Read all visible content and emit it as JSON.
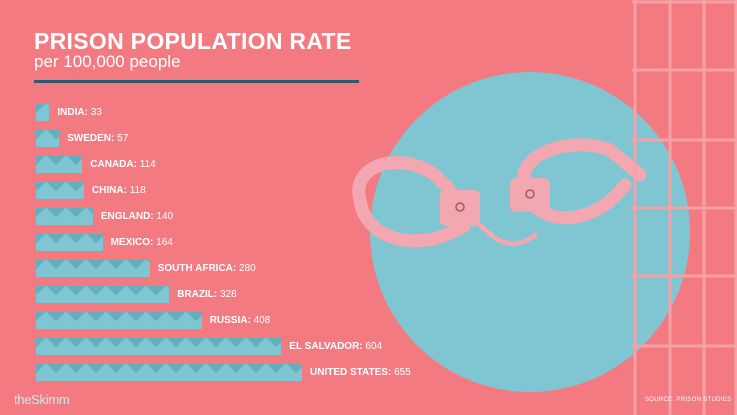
{
  "header": {
    "title": "PRISON POPULATION RATE",
    "subtitle": "per 100,000 people"
  },
  "footer": {
    "logo": "theSkimm",
    "source": "SOURCE: PRISON STUDIES"
  },
  "colors": {
    "background": "#f27a80",
    "bar": "#7fc6d2",
    "bar_pattern": "#4f9bac",
    "divider": "#2e5a6b",
    "circle": "#7fc6d2"
  },
  "decorations": {
    "handcuffs": "handcuffs-illustration",
    "prison_bars": "prison-bars-illustration"
  },
  "chart_data": {
    "type": "bar",
    "orientation": "horizontal",
    "title": "PRISON POPULATION RATE",
    "subtitle": "per 100,000 people",
    "categories": [
      "INDIA",
      "SWEDEN",
      "CANADA",
      "CHINA",
      "ENGLAND",
      "MEXICO",
      "SOUTH AFRICA",
      "BRAZIL",
      "RUSSIA",
      "EL SALVADOR",
      "UNITED STATES"
    ],
    "values": [
      33,
      57,
      114,
      118,
      140,
      164,
      280,
      328,
      408,
      604,
      655
    ],
    "value_labels": [
      "33",
      "57",
      "114",
      "118",
      "140",
      "164",
      "280",
      "328",
      "408",
      "604",
      "655"
    ],
    "xlim": [
      0,
      655
    ],
    "grid": false,
    "legend": "none"
  }
}
